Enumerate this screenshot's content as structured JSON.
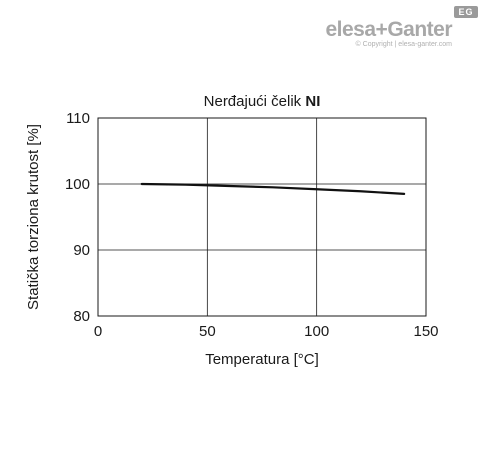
{
  "logo": {
    "brand_left": "elesa",
    "brand_sep": "+",
    "brand_right": "Ganter",
    "badge": "EG",
    "copyright": "© Copyright | elesa-ganter.com"
  },
  "chart_data": {
    "type": "line",
    "title_plain": "Nerđajući čelik ",
    "title_bold": "NI",
    "xlabel": "Temperatura [°C]",
    "ylabel": "Statička torziona krutost [%]",
    "xlim": [
      0,
      150
    ],
    "ylim": [
      80,
      110
    ],
    "xticks": [
      0,
      50,
      100,
      150
    ],
    "yticks": [
      80,
      90,
      100,
      110
    ],
    "grid": true,
    "series": [
      {
        "x": [
          20,
          40,
          60,
          80,
          100,
          120,
          140
        ],
        "y": [
          100,
          99.9,
          99.7,
          99.5,
          99.2,
          98.9,
          98.5
        ],
        "color": "#111111"
      }
    ]
  }
}
